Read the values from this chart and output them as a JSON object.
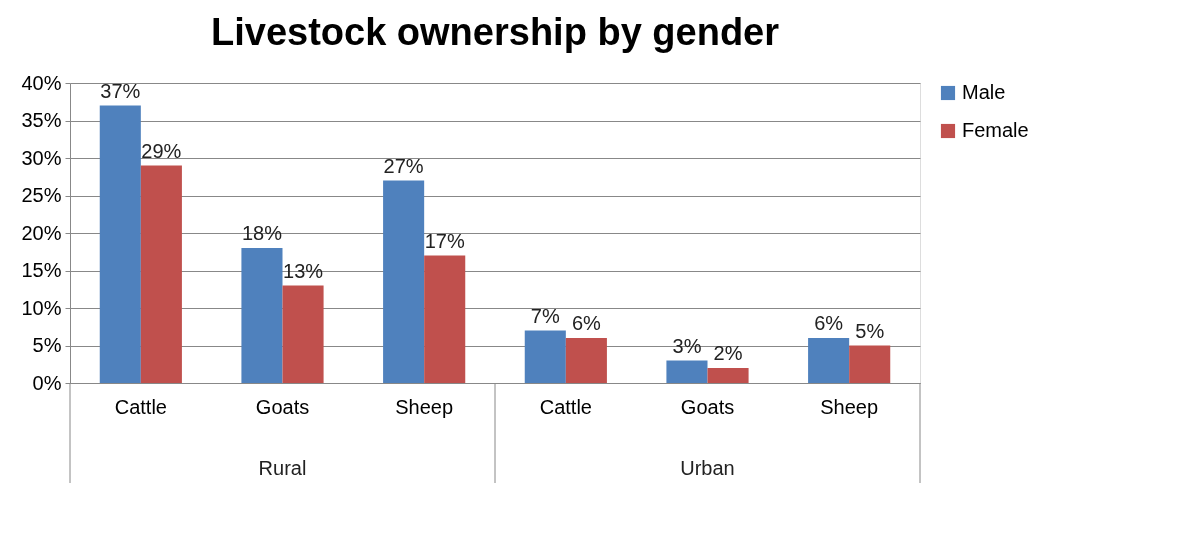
{
  "chart_data": {
    "type": "bar",
    "title": "Livestock ownership by gender",
    "categories": [
      "Cattle",
      "Goats",
      "Sheep",
      "Cattle",
      "Goats",
      "Sheep"
    ],
    "series": [
      {
        "name": "Male",
        "color": "#4f81bd",
        "values": [
          37,
          18,
          27,
          7,
          3,
          6
        ],
        "value_labels": [
          "37%",
          "18%",
          "27%",
          "7%",
          "3%",
          "6%"
        ]
      },
      {
        "name": "Female",
        "color": "#c0504d",
        "values": [
          29,
          13,
          17,
          6,
          2,
          5
        ],
        "value_labels": [
          "29%",
          "13%",
          "17%",
          "6%",
          "2%",
          "5%"
        ]
      }
    ],
    "annotations": [
      "Rural",
      "Urban"
    ],
    "ylim": [
      0,
      40
    ],
    "yticks": [
      {
        "value": 0,
        "label": "0%"
      },
      {
        "value": 5,
        "label": "5%"
      },
      {
        "value": 10,
        "label": "10%"
      },
      {
        "value": 15,
        "label": "15%"
      },
      {
        "value": 20,
        "label": "20%"
      },
      {
        "value": 25,
        "label": "25%"
      },
      {
        "value": 30,
        "label": "30%"
      },
      {
        "value": 35,
        "label": "35%"
      },
      {
        "value": 40,
        "label": "40%"
      }
    ],
    "grid": "y",
    "legend": "right"
  }
}
